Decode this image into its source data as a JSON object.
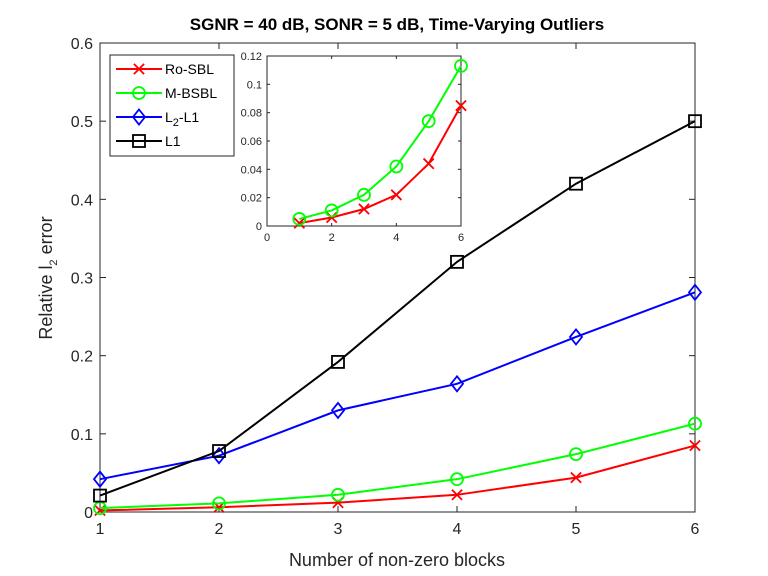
{
  "chart_data": {
    "type": "line",
    "title": "SGNR = 40 dB, SONR = 5 dB, Time-Varying Outliers",
    "xlabel": "Number of non-zero blocks",
    "ylabel_prefix": "Relative l",
    "ylabel_sub": "2",
    "ylabel_suffix": " error",
    "x": [
      1,
      2,
      3,
      4,
      5,
      6
    ],
    "xlim": [
      1,
      6
    ],
    "ylim": [
      0,
      0.6
    ],
    "xticks": [
      "1",
      "2",
      "3",
      "4",
      "5",
      "6"
    ],
    "yticks": [
      "0",
      "0.1",
      "0.2",
      "0.3",
      "0.4",
      "0.5",
      "0.6"
    ],
    "legend_position": "top-left",
    "series": [
      {
        "name": "Ro-SBL",
        "label_main": "Ro-SBL",
        "label_sub": "",
        "label_tail": "",
        "color": "#ff0000",
        "marker": "x",
        "values": [
          0.002,
          0.006,
          0.012,
          0.022,
          0.044,
          0.085
        ]
      },
      {
        "name": "M-BSBL",
        "label_main": "M-BSBL",
        "label_sub": "",
        "label_tail": "",
        "color": "#00ff00",
        "marker": "circle",
        "values": [
          0.005,
          0.011,
          0.022,
          0.042,
          0.074,
          0.113
        ]
      },
      {
        "name": "L2-L1",
        "label_main": "L",
        "label_sub": "2",
        "label_tail": "-L1",
        "color": "#0000ff",
        "marker": "diamond",
        "values": [
          0.042,
          0.072,
          0.13,
          0.164,
          0.224,
          0.281
        ]
      },
      {
        "name": "L1",
        "label_main": "L1",
        "label_sub": "",
        "label_tail": "",
        "color": "#000000",
        "marker": "square",
        "values": [
          0.021,
          0.078,
          0.192,
          0.32,
          0.42,
          0.5
        ]
      }
    ],
    "inset": {
      "xlim": [
        0,
        6
      ],
      "ylim": [
        0,
        0.12
      ],
      "xticks": [
        "0",
        "2",
        "4",
        "6"
      ],
      "yticks": [
        "0",
        "0.02",
        "0.04",
        "0.06",
        "0.08",
        "0.1",
        "0.12"
      ],
      "series_names": [
        "Ro-SBL",
        "M-BSBL"
      ]
    }
  }
}
